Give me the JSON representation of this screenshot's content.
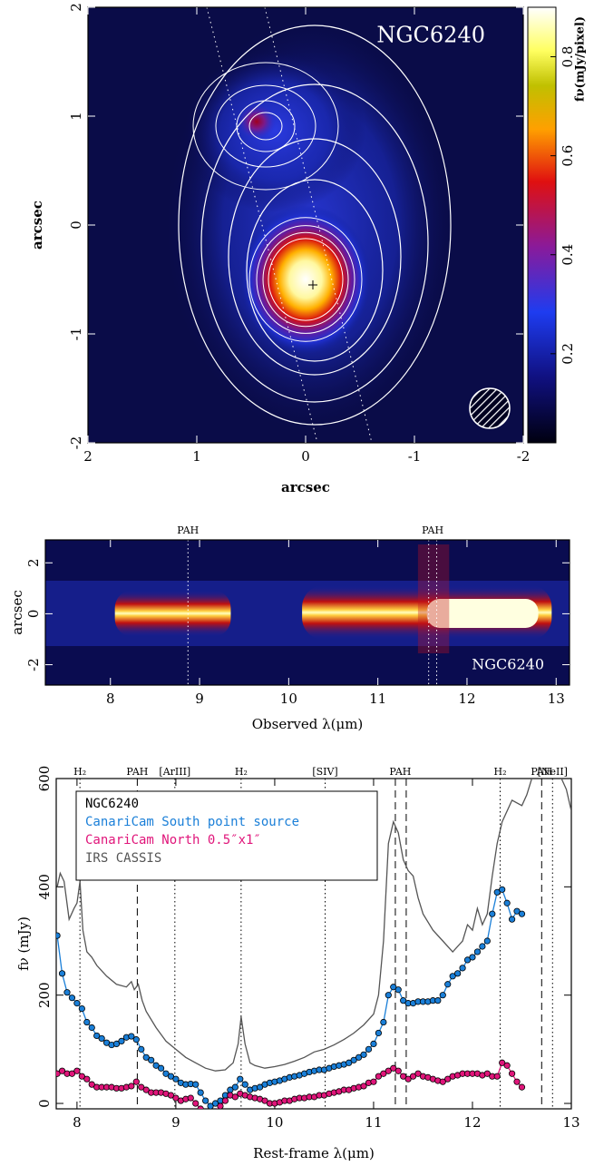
{
  "chart_data": [
    {
      "type": "heatmap",
      "title": "NGC6240",
      "xlabel": "arcsec",
      "ylabel": "arcsec",
      "xlim": [
        2,
        -2
      ],
      "ylim": [
        -2,
        2
      ],
      "xticks": [
        2,
        1,
        0,
        -1,
        -2
      ],
      "yticks": [
        -2,
        -1,
        0,
        1,
        2
      ],
      "colorbar": {
        "label": "fν(mJy/pixel)",
        "lim": [
          0.02,
          0.9
        ],
        "ticks": [
          0.2,
          0.4,
          0.6,
          0.8
        ]
      }
    },
    {
      "type": "spectrum-image",
      "title": "NGC6240",
      "xlabel": "Observed λ(μm)",
      "ylabel": "arcsec",
      "xlim": [
        7.27,
        13.15
      ],
      "ylim": [
        -2.8,
        2.9
      ],
      "xticks": [
        8,
        9,
        10,
        11,
        12,
        13
      ],
      "yticks": [
        -2,
        0,
        2
      ],
      "annotations": [
        {
          "label": "PAH",
          "x": [
            8.87
          ]
        },
        {
          "label": "PAH",
          "x": [
            11.57,
            11.66
          ]
        }
      ]
    },
    {
      "type": "line",
      "xlabel": "Rest-frame λ(μm)",
      "ylabel": "fν (mJy)",
      "xlim": [
        7.79,
        13.0
      ],
      "ylim": [
        -10,
        600
      ],
      "xticks": [
        8,
        9,
        10,
        11,
        12,
        13
      ],
      "yticks": [
        0,
        200,
        400,
        600
      ],
      "legend": "upper left",
      "legend_title": "NGC6240",
      "features": [
        {
          "label": "H₂",
          "x": 8.03,
          "style": "dotted"
        },
        {
          "label": "PAH",
          "x": 8.61,
          "style": "dashed"
        },
        {
          "label": "[ArIII]",
          "x": 8.99,
          "style": "dotted"
        },
        {
          "label": "H₂",
          "x": 9.66,
          "style": "dotted"
        },
        {
          "label": "[SIV]",
          "x": 10.51,
          "style": "dotted"
        },
        {
          "label": "PAH",
          "x": 11.27,
          "style": "dashed",
          "lines": [
            11.22,
            11.33
          ]
        },
        {
          "label": "H₂",
          "x": 12.28,
          "style": "dotted"
        },
        {
          "label": "PAH",
          "x": 12.7,
          "style": "dashed"
        },
        {
          "label": "[NeII]",
          "x": 12.81,
          "style": "dotted"
        }
      ],
      "series": [
        {
          "name": "CanariCam South point source",
          "color": "#1a7fd8",
          "markers": true,
          "x": [
            7.8,
            7.85,
            7.9,
            7.95,
            8.0,
            8.05,
            8.1,
            8.15,
            8.2,
            8.25,
            8.3,
            8.35,
            8.4,
            8.45,
            8.5,
            8.55,
            8.6,
            8.65,
            8.7,
            8.75,
            8.8,
            8.85,
            8.9,
            8.95,
            9.0,
            9.05,
            9.1,
            9.15,
            9.2,
            9.25,
            9.3,
            9.35,
            9.4,
            9.45,
            9.5,
            9.55,
            9.6,
            9.65,
            9.7,
            9.75,
            9.8,
            9.85,
            9.9,
            9.95,
            10.0,
            10.05,
            10.1,
            10.15,
            10.2,
            10.25,
            10.3,
            10.35,
            10.4,
            10.45,
            10.5,
            10.55,
            10.6,
            10.65,
            10.7,
            10.75,
            10.8,
            10.85,
            10.9,
            10.95,
            11.0,
            11.05,
            11.1,
            11.15,
            11.2,
            11.25,
            11.3,
            11.35,
            11.4,
            11.45,
            11.5,
            11.55,
            11.6,
            11.65,
            11.7,
            11.75,
            11.8,
            11.85,
            11.9,
            11.95,
            12.0,
            12.05,
            12.1,
            12.15,
            12.2,
            12.25,
            12.3,
            12.35,
            12.4,
            12.45,
            12.5
          ],
          "values": [
            310,
            240,
            205,
            195,
            185,
            175,
            150,
            140,
            125,
            120,
            112,
            108,
            110,
            115,
            122,
            124,
            118,
            100,
            85,
            80,
            70,
            65,
            55,
            50,
            45,
            38,
            35,
            36,
            35,
            20,
            5,
            -5,
            0,
            5,
            15,
            25,
            30,
            45,
            35,
            25,
            28,
            30,
            35,
            38,
            40,
            42,
            45,
            48,
            50,
            52,
            55,
            58,
            60,
            62,
            62,
            65,
            68,
            70,
            72,
            75,
            80,
            85,
            90,
            100,
            110,
            130,
            150,
            200,
            215,
            210,
            190,
            185,
            185,
            188,
            188,
            188,
            190,
            190,
            200,
            220,
            235,
            240,
            250,
            265,
            270,
            280,
            290,
            300,
            350,
            390,
            395,
            370,
            340,
            355,
            350
          ]
        },
        {
          "name": "CanariCam North 0.5″x1″",
          "color": "#e0157a",
          "markers": true,
          "x": [
            7.8,
            7.85,
            7.9,
            7.95,
            8.0,
            8.05,
            8.1,
            8.15,
            8.2,
            8.25,
            8.3,
            8.35,
            8.4,
            8.45,
            8.5,
            8.55,
            8.6,
            8.65,
            8.7,
            8.75,
            8.8,
            8.85,
            8.9,
            8.95,
            9.0,
            9.05,
            9.1,
            9.15,
            9.2,
            9.25,
            9.3,
            9.45,
            9.5,
            9.55,
            9.6,
            9.65,
            9.7,
            9.75,
            9.8,
            9.85,
            9.9,
            9.95,
            10.0,
            10.05,
            10.1,
            10.15,
            10.2,
            10.25,
            10.3,
            10.35,
            10.4,
            10.45,
            10.5,
            10.55,
            10.6,
            10.65,
            10.7,
            10.75,
            10.8,
            10.85,
            10.9,
            10.95,
            11.0,
            11.05,
            11.1,
            11.15,
            11.2,
            11.25,
            11.3,
            11.35,
            11.4,
            11.45,
            11.5,
            11.55,
            11.6,
            11.65,
            11.7,
            11.75,
            11.8,
            11.85,
            11.9,
            11.95,
            12.0,
            12.05,
            12.1,
            12.15,
            12.2,
            12.25,
            12.3,
            12.35,
            12.4,
            12.45,
            12.5
          ],
          "values": [
            55,
            60,
            55,
            55,
            60,
            50,
            45,
            35,
            30,
            30,
            30,
            30,
            28,
            28,
            30,
            32,
            40,
            30,
            25,
            20,
            20,
            20,
            18,
            15,
            10,
            5,
            8,
            10,
            0,
            -10,
            -30,
            -5,
            5,
            15,
            12,
            18,
            15,
            12,
            10,
            8,
            5,
            0,
            0,
            2,
            5,
            5,
            8,
            10,
            10,
            12,
            12,
            15,
            15,
            18,
            20,
            22,
            25,
            25,
            28,
            30,
            32,
            38,
            40,
            50,
            55,
            60,
            65,
            60,
            50,
            45,
            50,
            55,
            50,
            48,
            45,
            42,
            40,
            45,
            50,
            52,
            55,
            55,
            55,
            55,
            52,
            55,
            50,
            50,
            75,
            70,
            55,
            40,
            30
          ]
        },
        {
          "name": "IRS CASSIS",
          "color": "#555555",
          "markers": false,
          "x": [
            7.8,
            7.83,
            7.87,
            7.92,
            7.97,
            8.0,
            8.03,
            8.06,
            8.1,
            8.15,
            8.2,
            8.25,
            8.3,
            8.4,
            8.5,
            8.55,
            8.58,
            8.62,
            8.66,
            8.7,
            8.8,
            8.9,
            9.0,
            9.1,
            9.2,
            9.3,
            9.4,
            9.5,
            9.58,
            9.63,
            9.66,
            9.7,
            9.75,
            9.8,
            9.9,
            10.0,
            10.1,
            10.2,
            10.3,
            10.4,
            10.5,
            10.6,
            10.7,
            10.8,
            10.9,
            11.0,
            11.05,
            11.1,
            11.15,
            11.2,
            11.25,
            11.3,
            11.35,
            11.4,
            11.45,
            11.5,
            11.6,
            11.7,
            11.8,
            11.9,
            11.95,
            12.0,
            12.05,
            12.1,
            12.15,
            12.2,
            12.25,
            12.3,
            12.4,
            12.5,
            12.55,
            12.6,
            12.75,
            12.9,
            12.95,
            13.0
          ],
          "values": [
            400,
            425,
            410,
            340,
            360,
            370,
            410,
            320,
            280,
            270,
            255,
            245,
            235,
            220,
            215,
            225,
            210,
            220,
            190,
            170,
            140,
            115,
            100,
            85,
            75,
            65,
            60,
            62,
            75,
            110,
            160,
            110,
            75,
            70,
            65,
            68,
            72,
            78,
            85,
            95,
            100,
            108,
            118,
            130,
            145,
            165,
            200,
            300,
            480,
            520,
            500,
            450,
            430,
            420,
            380,
            350,
            320,
            300,
            280,
            300,
            330,
            320,
            360,
            330,
            350,
            420,
            480,
            520,
            560,
            550,
            570,
            600,
            660,
            600,
            580,
            540
          ]
        }
      ]
    }
  ]
}
